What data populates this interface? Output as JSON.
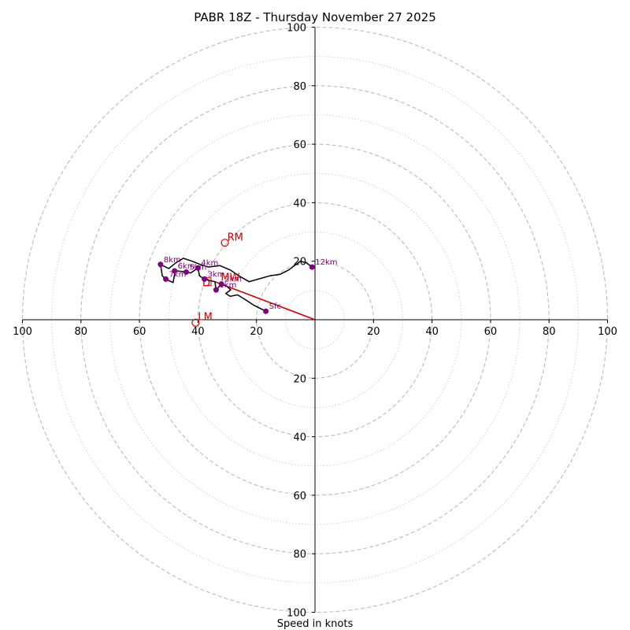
{
  "chart_data": {
    "type": "hodograph",
    "title": "PABR 18Z - Thursday November 27 2025",
    "xlabel": "Speed in knots",
    "rings": [
      10,
      20,
      30,
      40,
      50,
      60,
      70,
      80,
      90,
      100
    ],
    "ring_labels": [
      "20",
      "40",
      "60",
      "80",
      "100"
    ],
    "ring_label_values": [
      20,
      40,
      60,
      80,
      100
    ],
    "grid": true,
    "colors": {
      "trace": "#000000",
      "levels": "#800080",
      "motion": "#cc0000",
      "grid": "#bbbbbb"
    },
    "trace": [
      [
        -16.8,
        2.9
      ],
      [
        -21.0,
        5.0
      ],
      [
        -24.0,
        7.0
      ],
      [
        -26.5,
        8.5
      ],
      [
        -29.0,
        8.0
      ],
      [
        -30.5,
        9.0
      ],
      [
        -28.8,
        10.2
      ],
      [
        -30.2,
        11.5
      ],
      [
        -32.0,
        12.2
      ],
      [
        -33.8,
        10.2
      ],
      [
        -34.2,
        13.0
      ],
      [
        -36.5,
        13.5
      ],
      [
        -37.8,
        13.9
      ],
      [
        -39.5,
        15.0
      ],
      [
        -40.0,
        17.7
      ],
      [
        -42.5,
        16.0
      ],
      [
        -44.0,
        16.3
      ],
      [
        -46.5,
        16.6
      ],
      [
        -47.8,
        16.7
      ],
      [
        -48.5,
        12.7
      ],
      [
        -51.0,
        13.9
      ],
      [
        -52.2,
        15.0
      ],
      [
        -52.8,
        18.9
      ],
      [
        -50.0,
        17.5
      ],
      [
        -47.5,
        19.5
      ],
      [
        -45.0,
        21.0
      ],
      [
        -42.0,
        20.0
      ],
      [
        -39.5,
        19.0
      ],
      [
        -36.5,
        18.0
      ],
      [
        -32.5,
        18.5
      ],
      [
        -29.0,
        17.0
      ],
      [
        -26.0,
        15.0
      ],
      [
        -22.5,
        13.0
      ],
      [
        -19.0,
        14.0
      ],
      [
        -15.5,
        15.0
      ],
      [
        -12.0,
        15.5
      ],
      [
        -9.0,
        17.0
      ],
      [
        -5.0,
        20.0
      ],
      [
        -3.0,
        19.5
      ],
      [
        -1.0,
        18.0
      ]
    ],
    "levels": [
      {
        "label": "Sfc",
        "u": -16.8,
        "v": 2.9
      },
      {
        "label": "1km",
        "u": -33.8,
        "v": 10.2
      },
      {
        "label": "2km",
        "u": -32.0,
        "v": 12.2
      },
      {
        "label": "3km",
        "u": -37.8,
        "v": 13.9
      },
      {
        "label": "4km",
        "u": -40.0,
        "v": 17.7
      },
      {
        "label": "5km",
        "u": -44.0,
        "v": 16.3
      },
      {
        "label": "6km",
        "u": -48.0,
        "v": 16.7
      },
      {
        "label": "7km",
        "u": -51.0,
        "v": 13.9
      },
      {
        "label": "8km",
        "u": -52.8,
        "v": 18.9
      },
      {
        "label": "12km",
        "u": -1.0,
        "v": 18.0
      }
    ],
    "storm_motion": {
      "rm": {
        "label": "RM",
        "u": -30.8,
        "v": 26.3
      },
      "lm": {
        "label": "LM",
        "u": -40.8,
        "v": -1.0
      },
      "mw": {
        "label": "MW",
        "u": -33.0,
        "v": 12.5
      }
    },
    "shear_vector": {
      "from": [
        0,
        0
      ],
      "to": [
        -34.2,
        13.0
      ]
    },
    "right_motion_box_label": "D"
  }
}
